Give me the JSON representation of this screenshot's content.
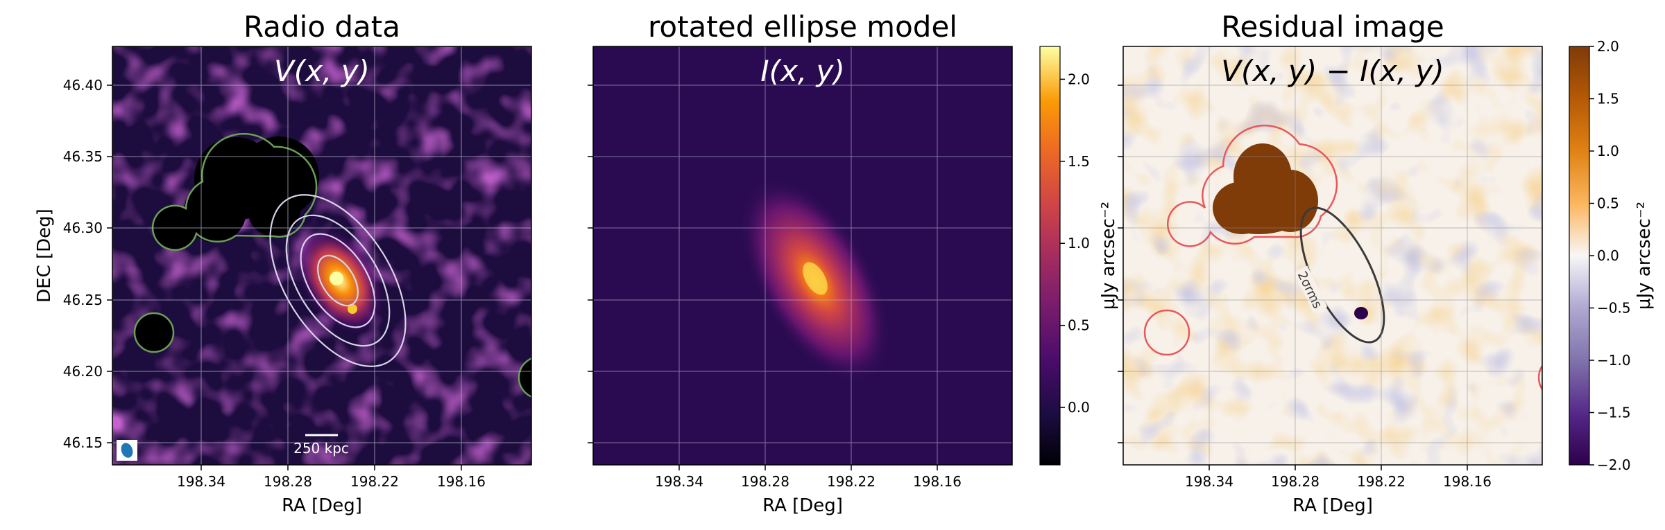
{
  "figure": {
    "panels": [
      {
        "title": "Radio data",
        "inner_label": "V(x, y)",
        "xlabel": "RA [Deg]",
        "ylabel": "DEC [Deg]"
      },
      {
        "title": "rotated ellipse model",
        "inner_label": "I(x, y)",
        "xlabel": "RA [Deg]"
      },
      {
        "title": "Residual image",
        "inner_label": "V(x, y) − I(x, y)",
        "xlabel": "RA [Deg]"
      }
    ],
    "scalebar_label": "250 kpc",
    "contour_label": "2σrms",
    "cbar1_label": "μJy arcsec⁻²",
    "cbar2_label": "μJy arcsec⁻²"
  },
  "chart_data": [
    {
      "type": "heatmap",
      "title": "Radio data",
      "annotations": [
        "V(x, y)",
        "250 kpc"
      ],
      "xlabel": "RA [Deg]",
      "ylabel": "DEC [Deg]",
      "x_ticks": [
        "198.34",
        "198.28",
        "198.22",
        "198.16"
      ],
      "y_ticks": [
        "46.40",
        "46.35",
        "46.30",
        "46.25",
        "46.20",
        "46.15"
      ],
      "xlim": [
        198.4,
        198.11
      ],
      "ylim": [
        46.135,
        46.425
      ],
      "grid": true,
      "colormap": "inferno",
      "peak": {
        "ra": 198.24,
        "dec": 46.266
      }
    },
    {
      "type": "heatmap",
      "title": "rotated ellipse model",
      "annotations": [
        "I(x, y)"
      ],
      "xlabel": "RA [Deg]",
      "x_ticks": [
        "198.34",
        "198.28",
        "198.22",
        "198.16"
      ],
      "xlim": [
        198.4,
        198.11
      ],
      "ylim": [
        46.135,
        46.425
      ],
      "grid": true,
      "colormap": "inferno",
      "center": {
        "ra": 198.235,
        "dec": 46.266
      },
      "colorbar": {
        "ticks": [
          "0.0",
          "0.5",
          "1.0",
          "1.5",
          "2.0"
        ],
        "tick_values": [
          0,
          0.5,
          1,
          1.5,
          2
        ],
        "range": [
          -0.35,
          2.2
        ],
        "label": "μJy arcsec⁻²"
      }
    },
    {
      "type": "heatmap",
      "title": "Residual image",
      "annotations": [
        "V(x, y) − I(x, y)",
        "2σrms"
      ],
      "xlabel": "RA [Deg]",
      "x_ticks": [
        "198.34",
        "198.28",
        "198.22",
        "198.16"
      ],
      "xlim": [
        198.4,
        198.11
      ],
      "ylim": [
        46.135,
        46.425
      ],
      "grid": true,
      "colormap": "PuOr_r",
      "colorbar": {
        "ticks": [
          "−2.0",
          "−1.5",
          "−1.0",
          "−0.5",
          "0.0",
          "0.5",
          "1.0",
          "1.5",
          "2.0"
        ],
        "tick_values": [
          -2,
          -1.5,
          -1,
          -0.5,
          0,
          0.5,
          1,
          1.5,
          2
        ],
        "range": [
          -2,
          2
        ],
        "label": "μJy arcsec⁻²"
      }
    }
  ],
  "colors": {
    "mask_contour_green": "#6a9f55",
    "mask_contour_red": "#e8575a",
    "model_contours": "#d8d4e8",
    "sigma_contour": "#3a3a3a",
    "beam": "#1f77b4",
    "grid_light": "#bdbdd0",
    "grid_dark": "#8a8a8a"
  }
}
